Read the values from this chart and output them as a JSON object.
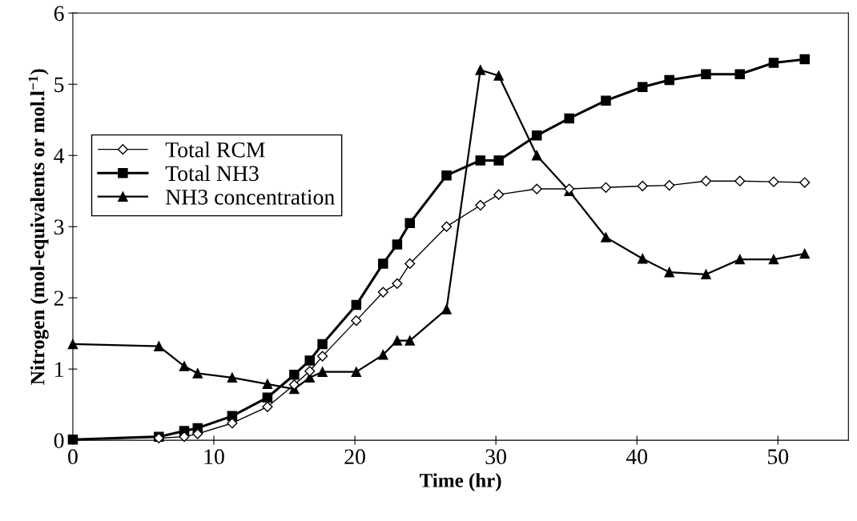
{
  "chart_data": {
    "type": "line",
    "xlabel": "Time (hr)",
    "ylabel": "Nitrogen (mol-equivalents or mol.l$^{−1}$)",
    "xlim": [
      0,
      55
    ],
    "xticks": [
      0,
      10,
      20,
      30,
      40,
      50
    ],
    "ylim": [
      0,
      6
    ],
    "yticks": [
      0,
      1,
      2,
      3,
      4,
      5,
      6
    ],
    "grid": false,
    "legend": "left",
    "x": [
      0,
      6.1,
      7.9,
      8.85,
      11.3,
      13.8,
      15.7,
      16.8,
      17.7,
      20.1,
      22.0,
      23.0,
      23.9,
      26.5,
      28.9,
      30.2,
      32.9,
      35.2,
      37.8,
      40.4,
      42.3,
      44.9,
      47.3,
      49.7,
      51.9
    ],
    "series": [
      {
        "name": "Total RCM",
        "color": "#000000",
        "marker": "diamond",
        "values": [
          null,
          0.03,
          0.05,
          0.09,
          0.24,
          0.47,
          0.78,
          0.97,
          1.18,
          1.68,
          2.08,
          2.2,
          2.48,
          3.0,
          3.3,
          3.45,
          3.53,
          3.53,
          3.55,
          3.57,
          3.58,
          3.64,
          3.64,
          3.63,
          3.62
        ]
      },
      {
        "name": "Total NH3",
        "color": "#000000",
        "marker": "square",
        "values": [
          0.01,
          0.05,
          0.13,
          0.17,
          0.34,
          0.6,
          0.92,
          1.12,
          1.35,
          1.9,
          2.48,
          2.75,
          3.05,
          3.72,
          3.93,
          3.93,
          4.28,
          4.52,
          4.77,
          4.96,
          5.06,
          5.14,
          5.14,
          5.3,
          5.35
        ]
      },
      {
        "name": "NH3 concentration",
        "color": "#000000",
        "marker": "triangle",
        "values": [
          1.35,
          1.32,
          1.04,
          0.94,
          0.88,
          0.79,
          0.72,
          0.88,
          0.96,
          0.96,
          1.2,
          1.4,
          1.4,
          1.84,
          5.2,
          5.12,
          4.0,
          3.5,
          2.85,
          2.55,
          2.36,
          2.33,
          2.54,
          2.54,
          2.62
        ]
      }
    ]
  }
}
